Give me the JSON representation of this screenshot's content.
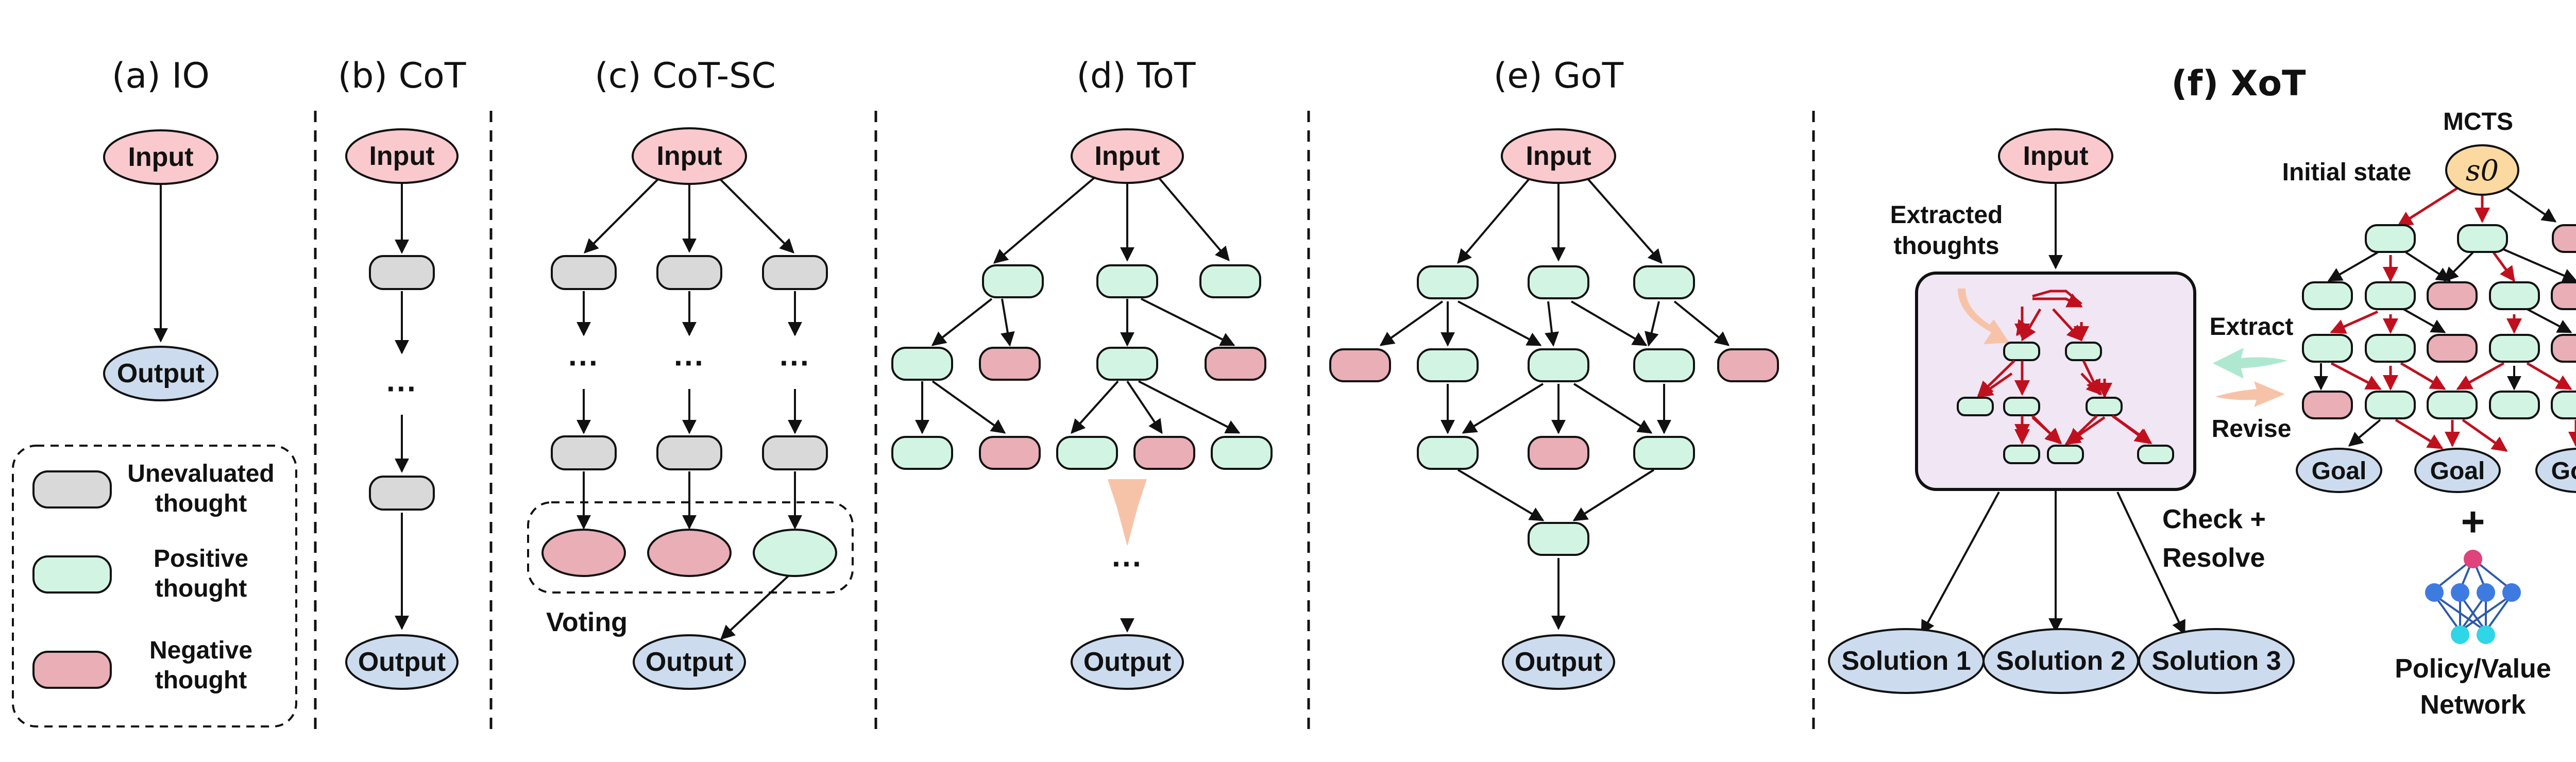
{
  "panels": {
    "io": {
      "title": "(a) IO"
    },
    "cot": {
      "title": "(b) CoT"
    },
    "cotsc": {
      "title": "(c) CoT-SC",
      "voting": "Voting"
    },
    "tot": {
      "title": "(d) ToT"
    },
    "got": {
      "title": "(e) GoT"
    },
    "xot": {
      "title": "(f) XoT",
      "mcts": "MCTS",
      "initial_state": "Initial state",
      "extracted": [
        "Extracted",
        "thoughts"
      ],
      "extract": "Extract",
      "revise": "Revise",
      "check": [
        "Check +",
        "Resolve"
      ],
      "goal": "Goal",
      "solutions": [
        "Solution 1",
        "Solution 2",
        "Solution 3"
      ],
      "policy": [
        "Policy/Value",
        "Network"
      ],
      "plus": "+",
      "s0": "s0"
    }
  },
  "node": {
    "input": "Input",
    "output": "Output"
  },
  "ellipsis": "···",
  "legend": [
    {
      "lines": [
        "Unevaluated",
        "thought"
      ],
      "color": "#d9d9d9"
    },
    {
      "lines": [
        "Positive",
        "thought"
      ],
      "color": "#d2f5e3"
    },
    {
      "lines": [
        "Negative",
        "thought"
      ],
      "color": "#e9aeb6"
    }
  ],
  "colors": {
    "input": "#f9c9cd",
    "output": "#ccdcee",
    "gray": "#d9d9d9",
    "green": "#d2f5e3",
    "red": "#e9aeb6",
    "purple": "#f0e6f4",
    "s0": "#fbd9a0",
    "arrow_red": "#c0101e"
  }
}
